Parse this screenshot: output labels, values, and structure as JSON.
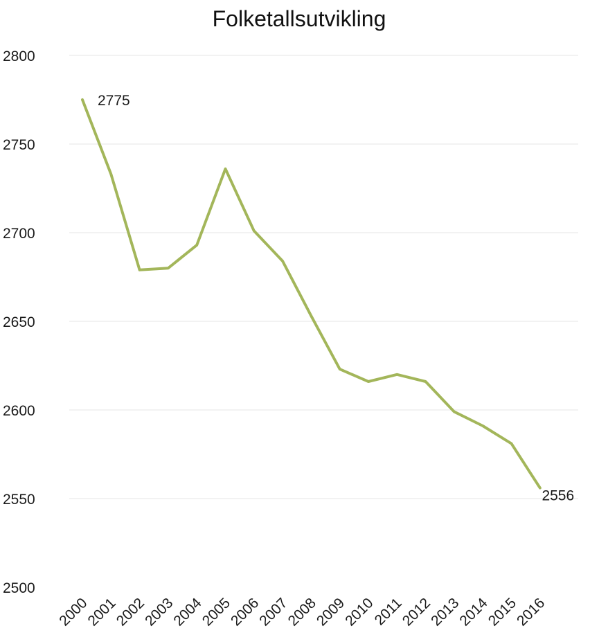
{
  "chart_data": {
    "type": "line",
    "title": "Folketallsutvikling",
    "xlabel": "",
    "ylabel": "",
    "ylim": [
      2500,
      2800
    ],
    "yticks": [
      2500,
      2550,
      2600,
      2650,
      2700,
      2750,
      2800
    ],
    "yticks_text": [
      "2500",
      "2550",
      "2600",
      "2650",
      "2700",
      "2750",
      "2800"
    ],
    "grid": true,
    "legend": "none",
    "categories": [
      "2000",
      "2001",
      "2002",
      "2003",
      "2004",
      "2005",
      "2006",
      "2007",
      "2008",
      "2009",
      "2010",
      "2011",
      "2012",
      "2013",
      "2014",
      "2015",
      "2016"
    ],
    "series": [
      {
        "name": "",
        "color": "#a3b65a",
        "values": [
          2775,
          2733,
          2679,
          2680,
          2693,
          2736,
          2701,
          2684,
          2653,
          2623,
          2616,
          2620,
          2616,
          2599,
          2591,
          2581,
          2556
        ]
      }
    ],
    "data_labels": [
      {
        "index": 0,
        "text": "2775"
      },
      {
        "index": 16,
        "text": "2556"
      }
    ]
  }
}
